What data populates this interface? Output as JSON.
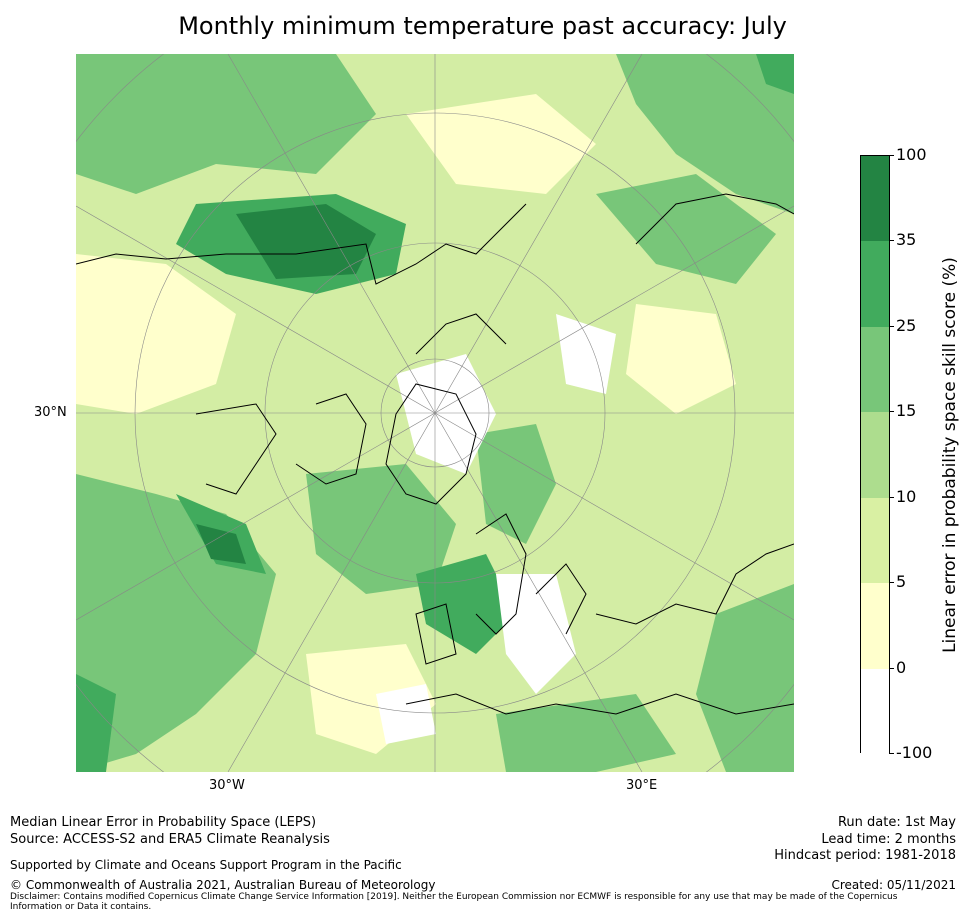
{
  "title": "Monthly minimum temperature past accuracy: July",
  "map": {
    "projection": "north-polar-stereographic",
    "lon_labels": [
      "30°W",
      "30°E"
    ],
    "lat_labels": [
      "30°N"
    ],
    "background_color": "#d3eda4"
  },
  "colorbar": {
    "label": "Linear error in probability space skill score (%)",
    "levels": [
      "100",
      "35",
      "25",
      "15",
      "10",
      "5",
      "0",
      "-100"
    ],
    "colors": [
      "#238443",
      "#41ab5d",
      "#78c679",
      "#addd8e",
      "#d9f0a3",
      "#ffffcc",
      "#ffffff"
    ]
  },
  "footer": {
    "line1": "Median Linear Error in Probability Space (LEPS)",
    "line2": "Source: ACCESS-S2 and ERA5 Climate Reanalysis",
    "line3": "Supported by Climate and Oceans Support Program in the Pacific",
    "line4": "© Commonwealth of Australia 2021, Australian Bureau of Meteorology",
    "disclaimer": "Disclaimer: Contains modified Copernicus Climate Change Service Information [2019]. Neither the European Commission nor ECMWF is responsible for any use that may be made of the Copernicus Information or Data it contains.",
    "run_date": "Run date: 1st May",
    "lead_time": "Lead time: 2 months",
    "hindcast": "Hindcast period: 1981-2018",
    "created": "Created: 05/11/2021"
  }
}
